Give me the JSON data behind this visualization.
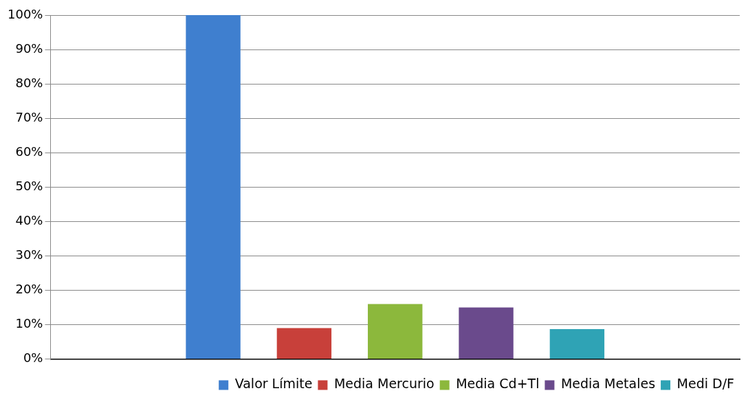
{
  "chart_data": {
    "type": "bar",
    "categories": [
      null
    ],
    "series": [
      {
        "name": "Valor Límite",
        "color": "#3f7fcf",
        "values": [
          100
        ]
      },
      {
        "name": "Media Mercurio",
        "color": "#c8403a",
        "values": [
          9
        ]
      },
      {
        "name": "Media Cd+Tl",
        "color": "#8cb83c",
        "values": [
          16
        ]
      },
      {
        "name": "Media Metales",
        "color": "#6a4a8c",
        "values": [
          15
        ]
      },
      {
        "name": "Medi D/F",
        "color": "#2fa3b5",
        "values": [
          8.7
        ]
      }
    ],
    "ylim": [
      0,
      100
    ],
    "yticks": [
      {
        "value": 0,
        "label": "0%"
      },
      {
        "value": 10,
        "label": "10%"
      },
      {
        "value": 20,
        "label": "20%"
      },
      {
        "value": 30,
        "label": "30%"
      },
      {
        "value": 40,
        "label": "40%"
      },
      {
        "value": 50,
        "label": "50%"
      },
      {
        "value": 60,
        "label": "60%"
      },
      {
        "value": 70,
        "label": "70%"
      },
      {
        "value": 80,
        "label": "80%"
      },
      {
        "value": 90,
        "label": "90%"
      },
      {
        "value": 100,
        "label": "100%"
      }
    ],
    "grid": "y",
    "legend": "bottom right"
  }
}
